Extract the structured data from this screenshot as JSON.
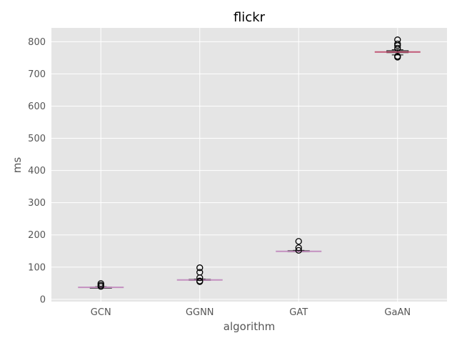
{
  "chart_data": {
    "type": "box",
    "title": "flickr",
    "xlabel": "algorithm",
    "ylabel": "ms",
    "categories": [
      "GCN",
      "GGNN",
      "GAT",
      "GaAN"
    ],
    "ylim": [
      -7,
      843
    ],
    "yticks": [
      0,
      100,
      200,
      300,
      400,
      500,
      600,
      700,
      800
    ],
    "grid": true,
    "colors": {
      "background": "#e5e5e5",
      "grid": "#ffffff",
      "box_median": "#c490c0",
      "gaan_median": "#c25a78",
      "box_edge": "#000000",
      "text": "#555555"
    },
    "boxes": [
      {
        "category": "GCN",
        "min": 36,
        "q1": 36,
        "median": 37,
        "q3": 38,
        "max": 39,
        "outliers": [
          40,
          44,
          49
        ]
      },
      {
        "category": "GGNN",
        "min": 59,
        "q1": 59,
        "median": 60,
        "q3": 62,
        "max": 63,
        "outliers": [
          55,
          57,
          67,
          84,
          98
        ]
      },
      {
        "category": "GAT",
        "min": 148,
        "q1": 148,
        "median": 149,
        "q3": 151,
        "max": 152,
        "outliers": [
          152,
          160,
          180
        ]
      },
      {
        "category": "GaAN",
        "min": 759,
        "q1": 766,
        "median": 768,
        "q3": 772,
        "max": 775,
        "outliers": [
          752,
          755,
          780,
          788,
          793,
          806
        ]
      }
    ]
  }
}
